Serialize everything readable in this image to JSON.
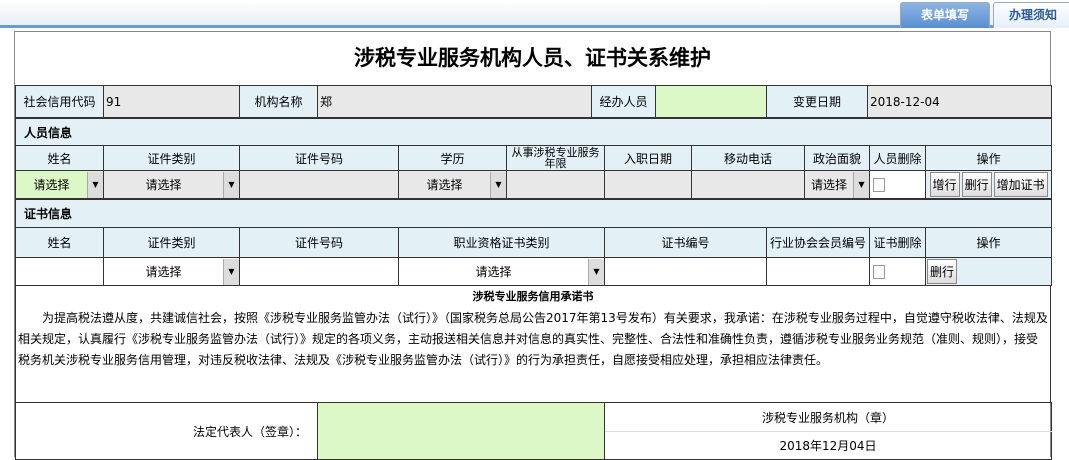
{
  "tabs": [
    {
      "label": "表单填写",
      "active": true
    },
    {
      "label": "办理须知",
      "active": false
    }
  ],
  "title": "涉税专业服务机构人员、证书关系维护",
  "header": {
    "credit_code_label": "社会信用代码",
    "credit_code_value": "91",
    "org_name_label": "机构名称",
    "org_name_value": "郑",
    "handler_label": "经办人员",
    "handler_value": "",
    "change_date_label": "变更日期",
    "change_date_value": "2018-12-04"
  },
  "personnel": {
    "section": "人员信息",
    "columns": [
      "姓名",
      "证件类别",
      "证件号码",
      "学历",
      "从事涉税专业服务年限",
      "入职日期",
      "移动电话",
      "政治面貌",
      "人员删除",
      "操作"
    ],
    "row": {
      "name_select": "请选择",
      "id_type_select": "请选择",
      "education_select": "请选择",
      "political_select": "请选择",
      "add_row": "增行",
      "delete_row": "删行",
      "add_cert": "增加证书"
    }
  },
  "certificates": {
    "section": "证书信息",
    "columns": [
      "姓名",
      "证件类别",
      "证件号码",
      "职业资格证书类别",
      "证书编号",
      "行业协会会员编号",
      "证书删除",
      "操作"
    ],
    "row": {
      "id_type_select": "请选择",
      "cert_type_select": "请选择",
      "delete_row": "删行"
    }
  },
  "promise": {
    "title": "涉税专业服务信用承诺书",
    "text": "为提高税法遵从度，共建诚信社会，按照《涉税专业服务监管办法（试行）》（国家税务总局公告2017年第13号发布）有关要求，我承诺：在涉税专业服务过程中，自觉遵守税收法律、法规及相关规定，认真履行《涉税专业服务监管办法（试行）》规定的各项义务，主动报送相关信息并对信息的真实性、完整性、合法性和准确性负责，遵循涉税专业服务业务规范（准则、规则），接受税务机关涉税专业服务信用管理，对违反税收法律、法规及《涉税专业服务监管办法（试行）》的行为承担责任，自愿接受相应处理，承担相应法律责任。"
  },
  "signature": {
    "legal_rep_label": "法定代表人（签章）：",
    "org_seal_label": "涉税专业服务机构（章）",
    "date": "2018年12月04日"
  }
}
